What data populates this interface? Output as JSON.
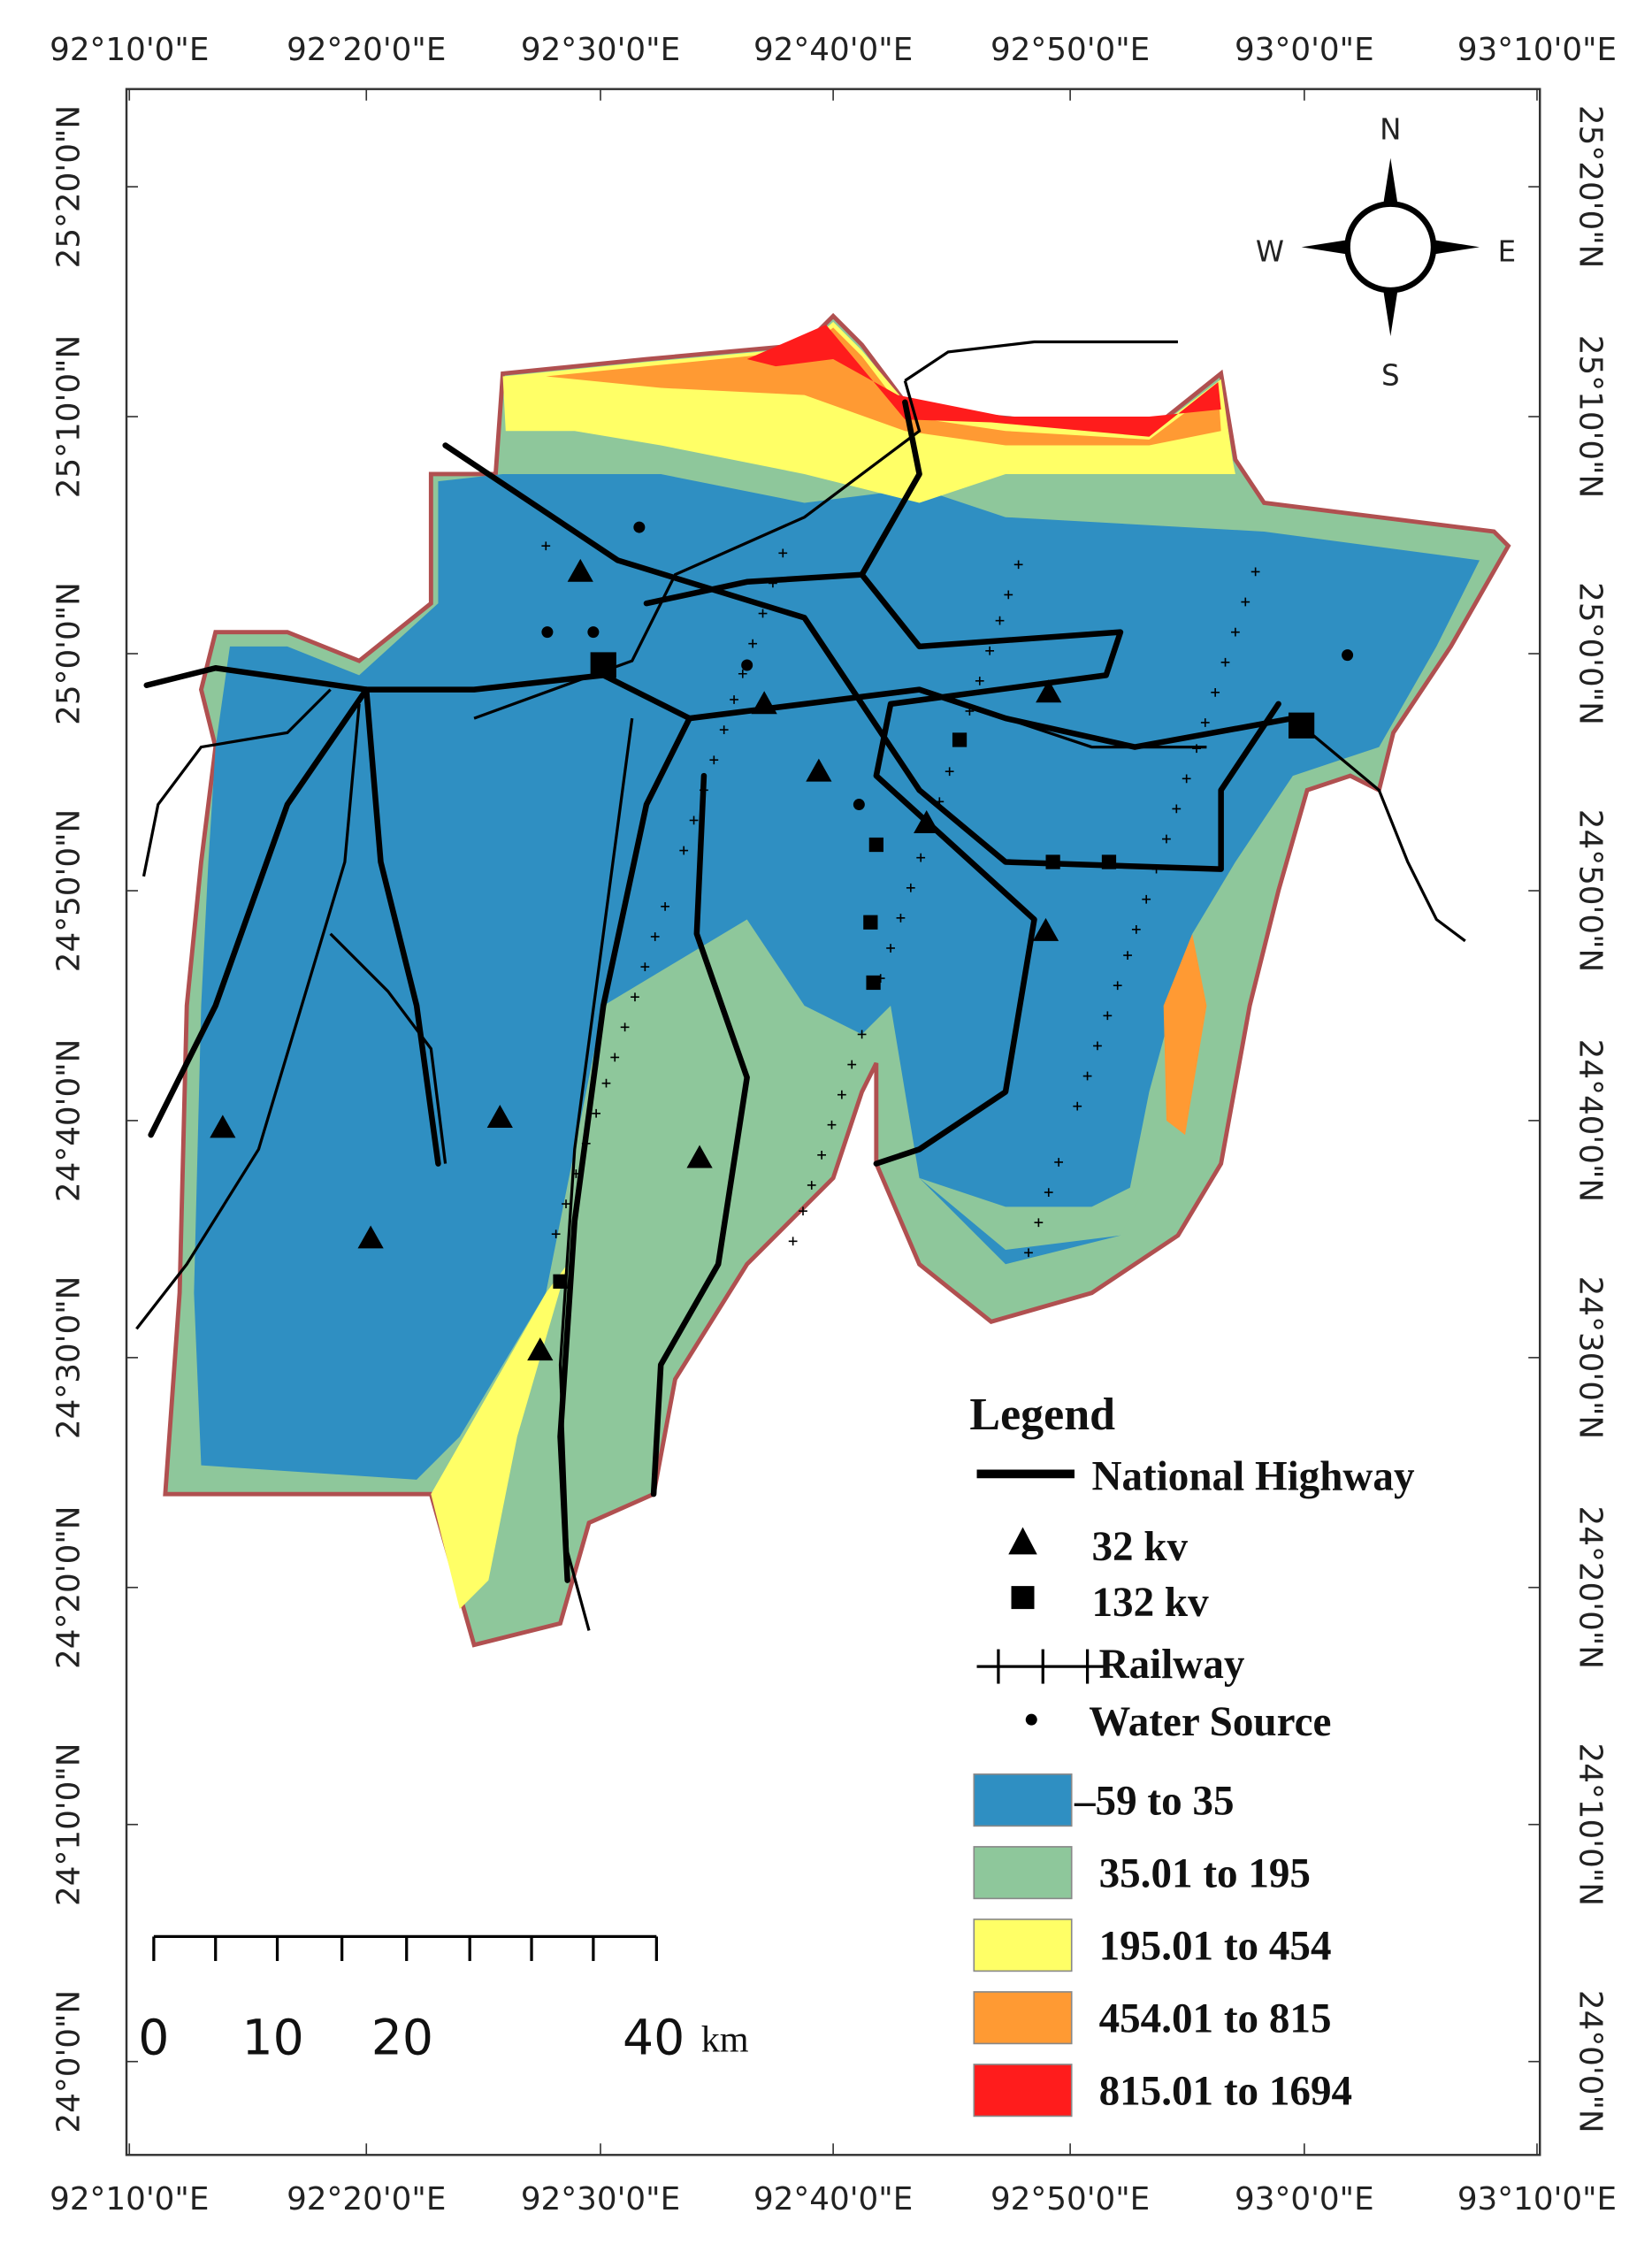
{
  "map": {
    "top_labels": [
      "92°10'0\"E",
      "92°20'0\"E",
      "92°30'0\"E",
      "92°40'0\"E",
      "92°50'0\"E",
      "93°0'0\"E",
      "93°10'0\"E"
    ],
    "bottom_labels": [
      "92°10'0\"E",
      "92°20'0\"E",
      "92°30'0\"E",
      "92°40'0\"E",
      "92°50'0\"E",
      "93°0'0\"E",
      "93°10'0\"E"
    ],
    "left_labels": [
      "25°20'0\"N",
      "25°10'0\"N",
      "25°0'0\"N",
      "24°50'0\"N",
      "24°40'0\"N",
      "24°30'0\"N",
      "24°20'0\"N",
      "24°10'0\"N",
      "24°0'0\"N"
    ],
    "right_labels": [
      "25°20'0\"N",
      "25°10'0\"N",
      "25°0'0\"N",
      "24°50'0\"N",
      "24°40'0\"N",
      "24°30'0\"N",
      "24°20'0\"N",
      "24°10'0\"N",
      "24°0'0\"N"
    ],
    "compass": {
      "n": "N",
      "e": "E",
      "s": "S",
      "w": "W"
    },
    "legend": {
      "title": "Legend",
      "items": [
        "National Highway",
        "32 kv",
        "132 kv",
        "Railway",
        "Water Source"
      ]
    },
    "elevation_classes": [
      {
        "label": "–59 to 35",
        "color": "#2f8fc2"
      },
      {
        "label": "35.01 to 195",
        "color": "#8ec79b"
      },
      {
        "label": "195.01 to 454",
        "color": "#ffff66"
      },
      {
        "label": "454.01 to 815",
        "color": "#ff9a33"
      },
      {
        "label": "815.01 to 1694",
        "color": "#ff1c1c"
      }
    ],
    "scale_bar": {
      "labels": [
        "0",
        "10",
        "20",
        "40"
      ],
      "unit": "km"
    }
  }
}
